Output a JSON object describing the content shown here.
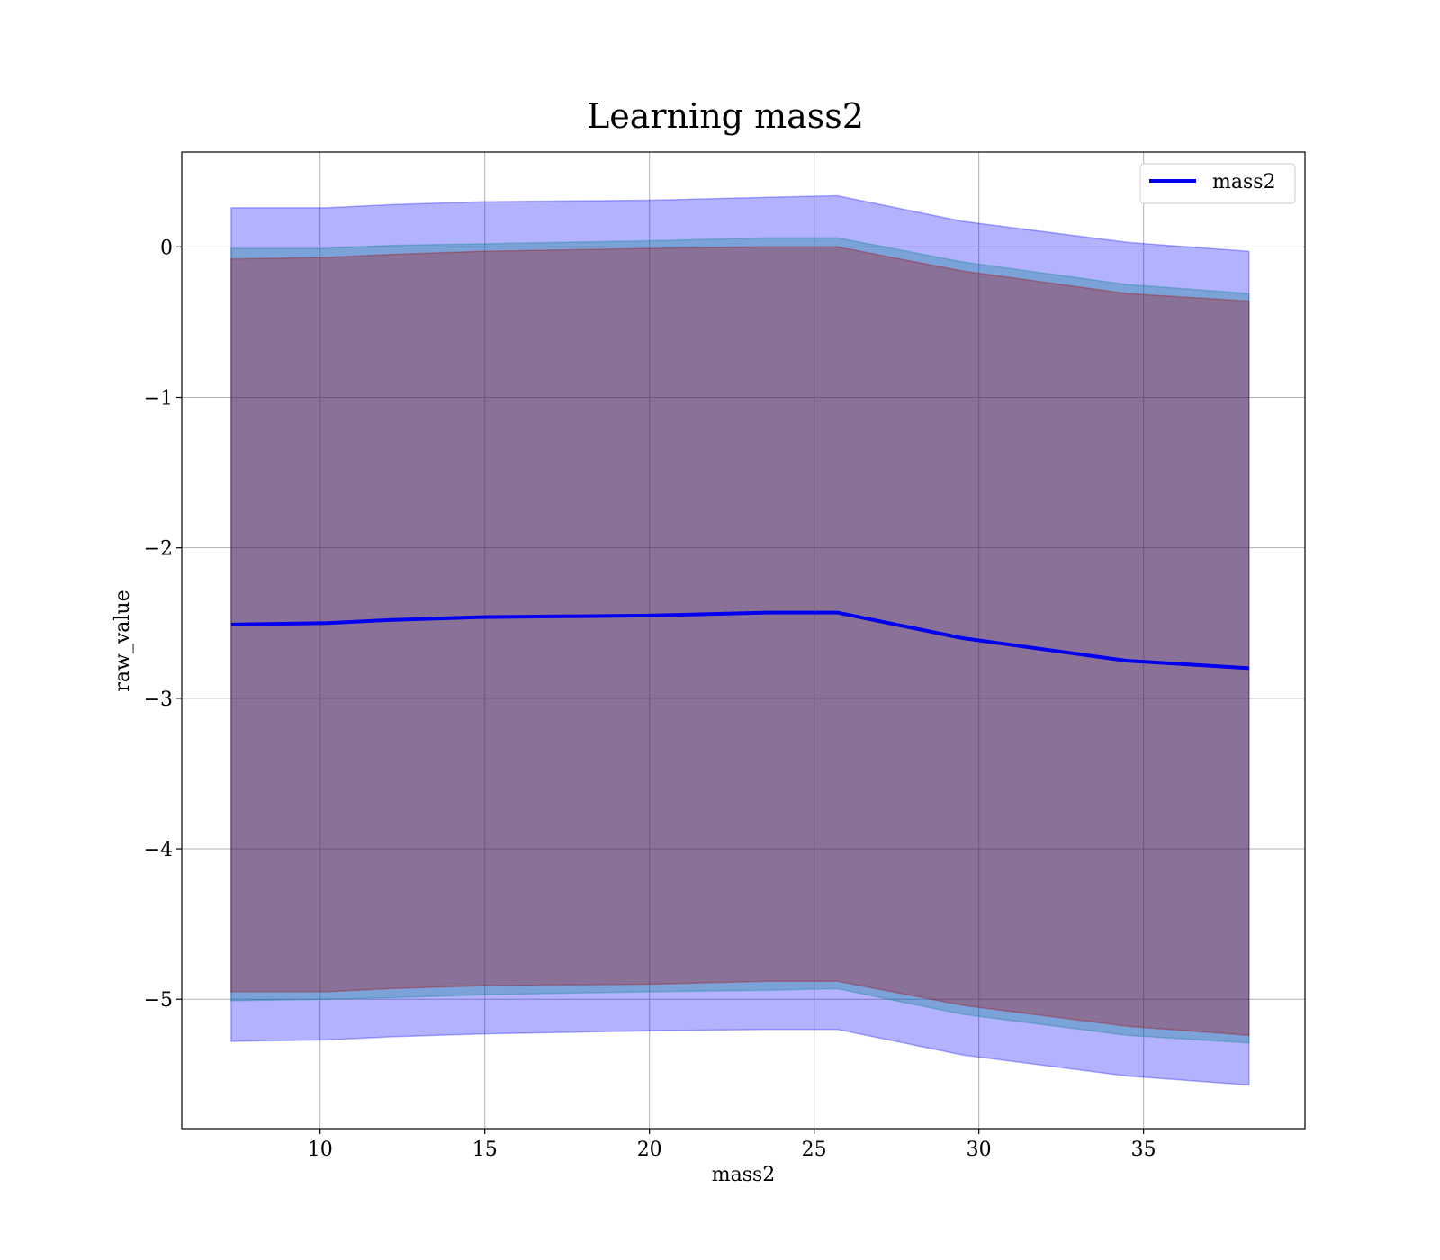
{
  "chart_data": {
    "type": "area",
    "title": "Learning mass2",
    "xlabel": "mass2",
    "ylabel": "raw_value",
    "xlim": [
      5.8,
      39.9
    ],
    "ylim": [
      -5.86,
      0.63
    ],
    "xticks": [
      10,
      15,
      20,
      25,
      30,
      35
    ],
    "yticks": [
      0,
      -1,
      -2,
      -3,
      -4,
      -5
    ],
    "xtick_labels": [
      "10",
      "15",
      "20",
      "25",
      "30",
      "35"
    ],
    "ytick_labels": [
      "0",
      "−1",
      "−2",
      "−3",
      "−4",
      "−5"
    ],
    "grid": true,
    "legend": {
      "position": "top-right",
      "entries": [
        "mass2"
      ]
    },
    "x": [
      7.3,
      10.2,
      12.1,
      14.9,
      20.0,
      23.6,
      25.7,
      29.5,
      34.5,
      38.2
    ],
    "series": [
      {
        "name": "mass2",
        "kind": "line",
        "color": "#0000ee",
        "values": [
          -2.51,
          -2.5,
          -2.48,
          -2.46,
          -2.45,
          -2.43,
          -2.43,
          -2.6,
          -2.75,
          -2.8
        ]
      }
    ],
    "bands": [
      {
        "color": "#0000ff",
        "upper": [
          0.26,
          0.26,
          0.28,
          0.3,
          0.31,
          0.33,
          0.34,
          0.17,
          0.03,
          -0.03
        ],
        "lower": [
          -5.28,
          -5.27,
          -5.25,
          -5.23,
          -5.21,
          -5.2,
          -5.2,
          -5.37,
          -5.51,
          -5.57
        ]
      },
      {
        "color": "#008080",
        "upper": [
          -0.01,
          -0.01,
          0.01,
          0.02,
          0.04,
          0.06,
          0.06,
          -0.1,
          -0.25,
          -0.31
        ],
        "lower": [
          -5.01,
          -5.0,
          -4.99,
          -4.97,
          -4.95,
          -4.94,
          -4.93,
          -5.1,
          -5.24,
          -5.29
        ]
      },
      {
        "color": "#aa0000",
        "upper": [
          -0.08,
          -0.07,
          -0.05,
          -0.03,
          -0.01,
          0.0,
          0.0,
          -0.16,
          -0.31,
          -0.36
        ],
        "lower": [
          -4.95,
          -4.95,
          -4.93,
          -4.91,
          -4.9,
          -4.88,
          -4.88,
          -5.04,
          -5.18,
          -5.24
        ]
      }
    ]
  }
}
